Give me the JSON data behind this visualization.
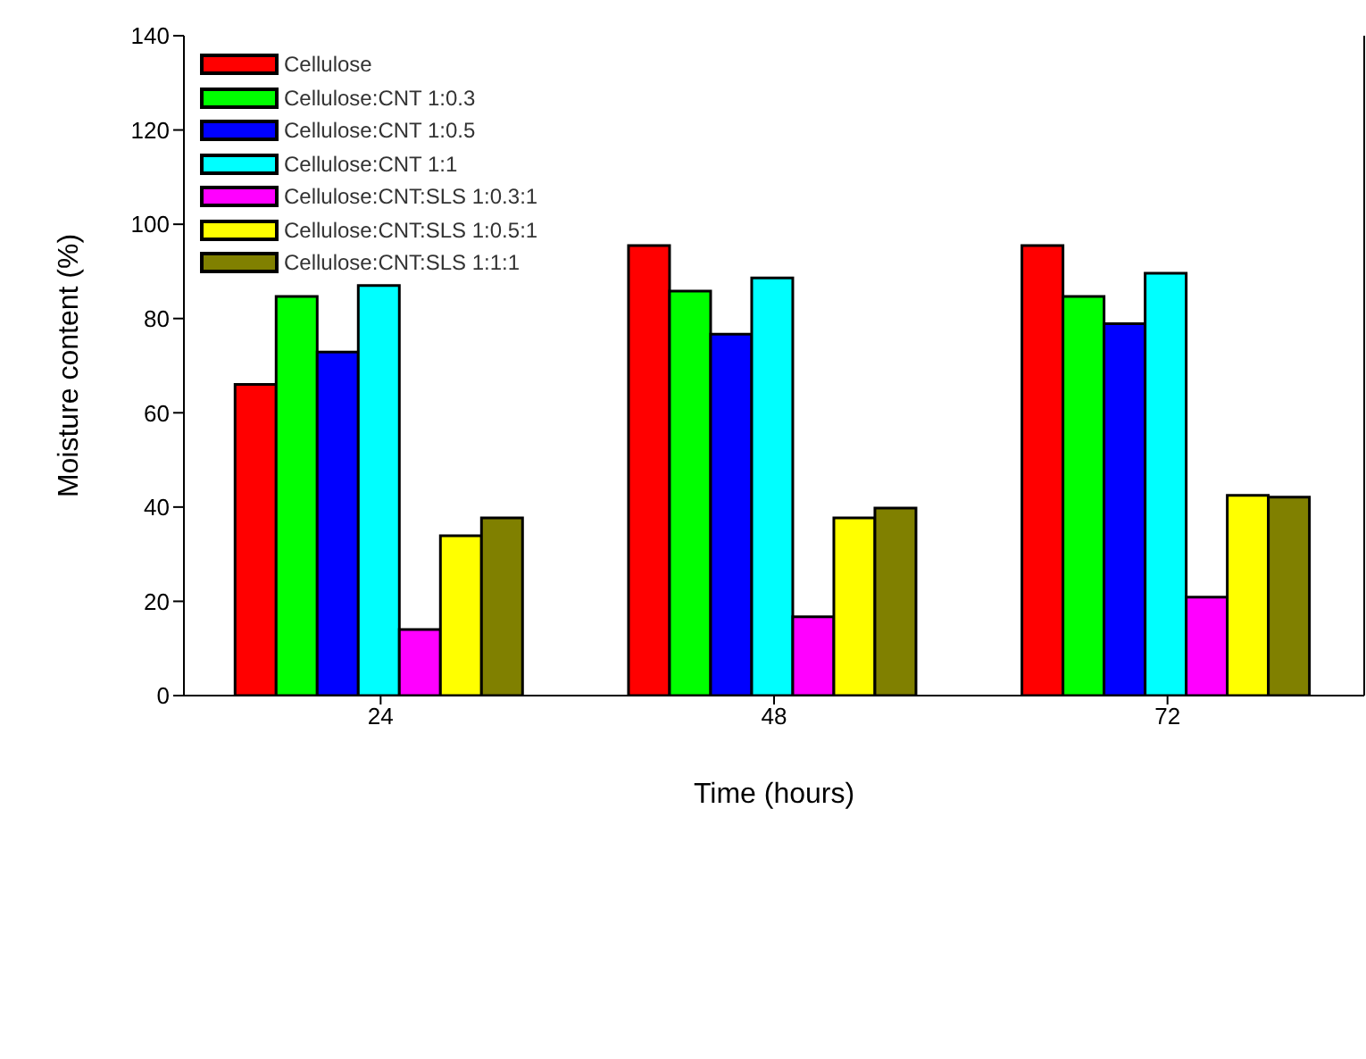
{
  "chart_data": {
    "type": "bar",
    "xlabel": "Time (hours)",
    "ylabel": "Moisture content (%)",
    "categories": [
      "24",
      "48",
      "72"
    ],
    "series": [
      {
        "name": "Cellulose",
        "color": "#ff0000",
        "values": [
          66,
          95.5,
          95.5
        ]
      },
      {
        "name": "Cellulose:CNT 1:0.3",
        "color": "#00ff00",
        "values": [
          84.7,
          85.8,
          84.7
        ]
      },
      {
        "name": "Cellulose:CNT 1:0.5",
        "color": "#0000ff",
        "values": [
          72.9,
          76.7,
          78.9
        ]
      },
      {
        "name": "Cellulose:CNT 1:1",
        "color": "#00ffff",
        "values": [
          87,
          88.6,
          89.6
        ]
      },
      {
        "name": "Cellulose:CNT:SLS 1:0.3:1",
        "color": "#ff00ff",
        "values": [
          14,
          16.7,
          20.9
        ]
      },
      {
        "name": "Cellulose:CNT:SLS 1:0.5:1",
        "color": "#ffff00",
        "values": [
          33.9,
          37.7,
          42.5
        ]
      },
      {
        "name": "Cellulose:CNT:SLS 1:1:1",
        "color": "#808000",
        "values": [
          37.7,
          39.8,
          42.1
        ]
      }
    ],
    "ylim": [
      0,
      140
    ],
    "yticks": [
      0,
      20,
      40,
      60,
      80,
      100,
      120,
      140
    ],
    "grid": false,
    "legend": "top left"
  }
}
